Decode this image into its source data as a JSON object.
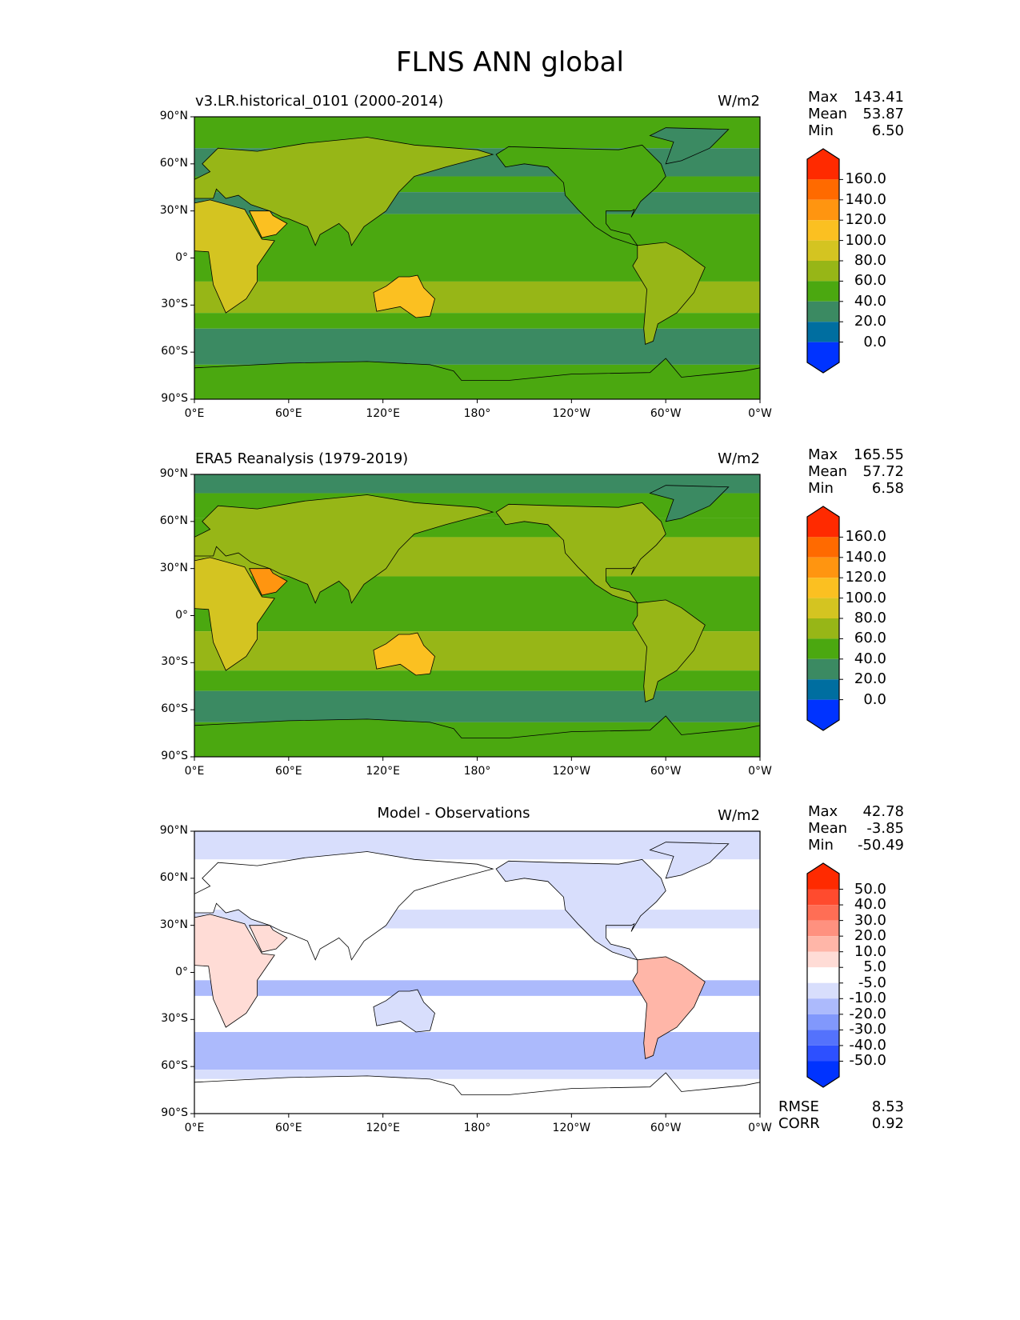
{
  "chart_data": {
    "type": "heatmap",
    "title": "FLNS ANN global",
    "x_ticks": [
      "0°E",
      "60°E",
      "120°E",
      "180°",
      "120°W",
      "60°W",
      "0°W"
    ],
    "y_ticks": [
      "90°N",
      "60°N",
      "30°N",
      "0°",
      "30°S",
      "60°S",
      "90°S"
    ],
    "panels": [
      {
        "title": "v3.LR.historical_0101 (2000-2014)",
        "units": "W/m2",
        "stats": {
          "max_label": "Max",
          "max": "143.41",
          "mean_label": "Mean",
          "mean": "53.87",
          "min_label": "Min",
          "min": "6.50"
        },
        "colorbar": {
          "levels": [
            "160.0",
            "140.0",
            "120.0",
            "100.0",
            "80.0",
            "60.0",
            "40.0",
            "20.0",
            "0.0"
          ],
          "colors": [
            "#ff2a00",
            "#ff6a00",
            "#ff9510",
            "#fbc021",
            "#d4c421",
            "#97b617",
            "#4ba810",
            "#3b8a62",
            "#006ea0",
            "#0033ff"
          ]
        }
      },
      {
        "title": "ERA5 Reanalysis (1979-2019)",
        "units": "W/m2",
        "stats": {
          "max_label": "Max",
          "max": "165.55",
          "mean_label": "Mean",
          "mean": "57.72",
          "min_label": "Min",
          "min": "6.58"
        },
        "colorbar": {
          "levels": [
            "160.0",
            "140.0",
            "120.0",
            "100.0",
            "80.0",
            "60.0",
            "40.0",
            "20.0",
            "0.0"
          ],
          "colors": [
            "#ff2a00",
            "#ff6a00",
            "#ff9510",
            "#fbc021",
            "#d4c421",
            "#97b617",
            "#4ba810",
            "#3b8a62",
            "#006ea0",
            "#0033ff"
          ]
        }
      },
      {
        "title": "Model - Observations",
        "units": "W/m2",
        "stats": {
          "max_label": "Max",
          "max": "42.78",
          "mean_label": "Mean",
          "mean": "-3.85",
          "min_label": "Min",
          "min": "-50.49"
        },
        "colorbar": {
          "levels": [
            "50.0",
            "40.0",
            "30.0",
            "20.0",
            "10.0",
            "5.0",
            "-5.0",
            "-10.0",
            "-20.0",
            "-30.0",
            "-40.0",
            "-50.0"
          ],
          "colors": [
            "#ff2a00",
            "#ff4b2e",
            "#ff6e55",
            "#ff917f",
            "#ffb6a8",
            "#ffdcd6",
            "#ffffff",
            "#d8defc",
            "#acbafc",
            "#8198fc",
            "#5472fc",
            "#2d50ff",
            "#0033ff"
          ]
        },
        "metrics": {
          "rmse_label": "RMSE",
          "rmse": "8.53",
          "corr_label": "CORR",
          "corr": "0.92"
        }
      }
    ]
  }
}
